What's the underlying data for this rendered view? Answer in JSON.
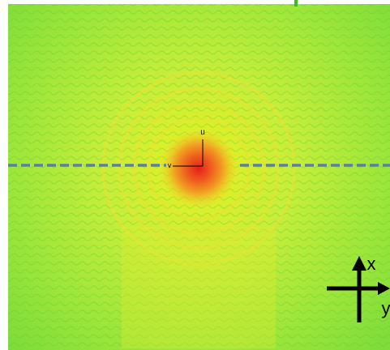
{
  "labels": {
    "u": "u",
    "v": "v",
    "x": "x",
    "y": "y"
  }
}
